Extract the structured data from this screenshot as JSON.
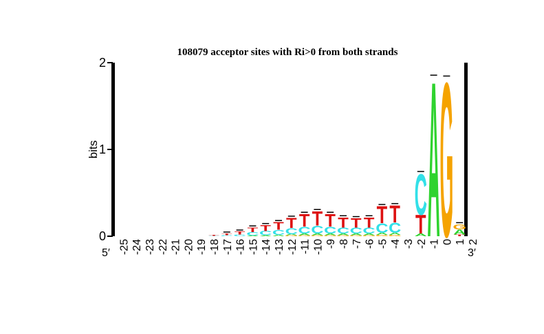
{
  "chart_data": {
    "type": "sequence-logo",
    "title": "108079 acceptor sites with Ri>0 from both strands",
    "ylabel": "bits",
    "ylim": [
      0,
      2
    ],
    "yticks": [
      "0",
      "1",
      "2"
    ],
    "left_end_label": "5′",
    "right_end_label": "3′",
    "colors": {
      "A": "#2fd32f",
      "C": "#33e0e8",
      "G": "#f5a300",
      "T": "#dd1111"
    },
    "positions": [
      {
        "label": "-25",
        "stack": []
      },
      {
        "label": "-24",
        "stack": []
      },
      {
        "label": "-23",
        "stack": []
      },
      {
        "label": "-22",
        "stack": []
      },
      {
        "label": "-21",
        "stack": []
      },
      {
        "label": "-20",
        "stack": []
      },
      {
        "label": "-19",
        "stack": []
      },
      {
        "label": "-18",
        "stack": [
          {
            "b": "C",
            "h": 0.005
          },
          {
            "b": "T",
            "h": 0.008
          }
        ]
      },
      {
        "label": "-17",
        "stack": [
          {
            "b": "C",
            "h": 0.012
          },
          {
            "b": "T",
            "h": 0.02
          }
        ]
      },
      {
        "label": "-16",
        "stack": [
          {
            "b": "C",
            "h": 0.02
          },
          {
            "b": "T",
            "h": 0.035
          }
        ]
      },
      {
        "label": "-15",
        "stack": [
          {
            "b": "A",
            "h": 0.008
          },
          {
            "b": "C",
            "h": 0.04
          },
          {
            "b": "T",
            "h": 0.055
          }
        ]
      },
      {
        "label": "-14",
        "stack": [
          {
            "b": "A",
            "h": 0.01
          },
          {
            "b": "C",
            "h": 0.05
          },
          {
            "b": "T",
            "h": 0.07
          }
        ]
      },
      {
        "label": "-13",
        "stack": [
          {
            "b": "A",
            "h": 0.015
          },
          {
            "b": "C",
            "h": 0.06
          },
          {
            "b": "T",
            "h": 0.09
          }
        ]
      },
      {
        "label": "-12",
        "stack": [
          {
            "b": "G",
            "h": 0.01
          },
          {
            "b": "A",
            "h": 0.015
          },
          {
            "b": "C",
            "h": 0.07
          },
          {
            "b": "T",
            "h": 0.12
          }
        ]
      },
      {
        "label": "-11",
        "stack": [
          {
            "b": "G",
            "h": 0.01
          },
          {
            "b": "A",
            "h": 0.02
          },
          {
            "b": "C",
            "h": 0.08
          },
          {
            "b": "T",
            "h": 0.15
          }
        ]
      },
      {
        "label": "-10",
        "stack": [
          {
            "b": "G",
            "h": 0.012
          },
          {
            "b": "A",
            "h": 0.02
          },
          {
            "b": "C",
            "h": 0.09
          },
          {
            "b": "T",
            "h": 0.17
          }
        ]
      },
      {
        "label": "-9",
        "stack": [
          {
            "b": "G",
            "h": 0.01
          },
          {
            "b": "A",
            "h": 0.02
          },
          {
            "b": "C",
            "h": 0.08
          },
          {
            "b": "T",
            "h": 0.15
          }
        ]
      },
      {
        "label": "-8",
        "stack": [
          {
            "b": "G",
            "h": 0.01
          },
          {
            "b": "A",
            "h": 0.02
          },
          {
            "b": "C",
            "h": 0.07
          },
          {
            "b": "T",
            "h": 0.12
          }
        ]
      },
      {
        "label": "-7",
        "stack": [
          {
            "b": "G",
            "h": 0.01
          },
          {
            "b": "A",
            "h": 0.02
          },
          {
            "b": "C",
            "h": 0.07
          },
          {
            "b": "T",
            "h": 0.11
          }
        ]
      },
      {
        "label": "-6",
        "stack": [
          {
            "b": "G",
            "h": 0.01
          },
          {
            "b": "A",
            "h": 0.02
          },
          {
            "b": "C",
            "h": 0.07
          },
          {
            "b": "T",
            "h": 0.12
          }
        ]
      },
      {
        "label": "-5",
        "stack": [
          {
            "b": "G",
            "h": 0.015
          },
          {
            "b": "A",
            "h": 0.025
          },
          {
            "b": "C",
            "h": 0.11
          },
          {
            "b": "T",
            "h": 0.2
          }
        ]
      },
      {
        "label": "-4",
        "stack": [
          {
            "b": "G",
            "h": 0.015
          },
          {
            "b": "A",
            "h": 0.025
          },
          {
            "b": "C",
            "h": 0.12
          },
          {
            "b": "T",
            "h": 0.2
          }
        ]
      },
      {
        "label": "-3",
        "stack": []
      },
      {
        "label": "-2",
        "stack": [
          {
            "b": "A",
            "h": 0.03
          },
          {
            "b": "T",
            "h": 0.22
          },
          {
            "b": "C",
            "h": 0.48
          }
        ]
      },
      {
        "label": "-1",
        "stack": [
          {
            "b": "A",
            "h": 1.84
          }
        ]
      },
      {
        "label": "0",
        "stack": [
          {
            "b": "G",
            "h": 1.83
          }
        ]
      },
      {
        "label": "1",
        "stack": [
          {
            "b": "T",
            "h": 0.02
          },
          {
            "b": "A",
            "h": 0.06
          },
          {
            "b": "G",
            "h": 0.06
          }
        ]
      },
      {
        "label": "2",
        "stack": []
      }
    ]
  }
}
